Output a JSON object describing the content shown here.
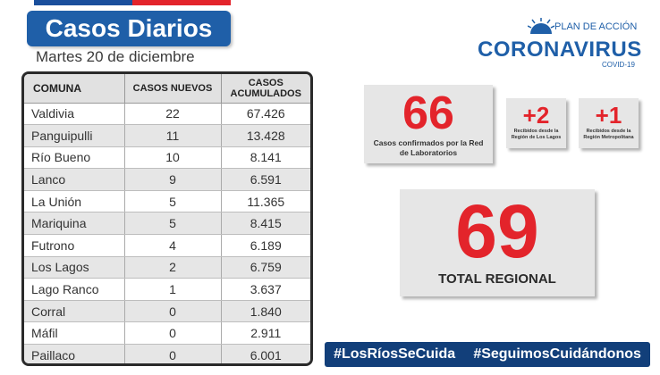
{
  "header": {
    "title": "Casos Diarios",
    "date": "Martes 20 de diciembre"
  },
  "logo": {
    "plan_label": "PLAN DE ACCIÓN",
    "name": "CORONAVIRUS",
    "sub": "COVID-19"
  },
  "table": {
    "headers": [
      "COMUNA",
      "CASOS NUEVOS",
      "CASOS ACUMULADOS"
    ],
    "rows": [
      [
        "Valdivia",
        "22",
        "67.426"
      ],
      [
        "Panguipulli",
        "11",
        "13.428"
      ],
      [
        "Río Bueno",
        "10",
        "8.141"
      ],
      [
        "Lanco",
        "9",
        "6.591"
      ],
      [
        "La Unión",
        "5",
        "11.365"
      ],
      [
        "Mariquina",
        "5",
        "8.415"
      ],
      [
        "Futrono",
        "4",
        "6.189"
      ],
      [
        "Los Lagos",
        "2",
        "6.759"
      ],
      [
        "Lago Ranco",
        "1",
        "3.637"
      ],
      [
        "Corral",
        "0",
        "1.840"
      ],
      [
        "Máfil",
        "0",
        "2.911"
      ],
      [
        "Paillaco",
        "0",
        "6.001"
      ]
    ]
  },
  "cards": {
    "lab": {
      "value": "66",
      "caption": "Casos confirmados por la Red de Laboratorios"
    },
    "los_lagos": {
      "value": "+2",
      "caption": "Recibidos desde la Región de Los Lagos"
    },
    "metropolitana": {
      "value": "+1",
      "caption": "Recibidos desde la Región Metropolitana"
    },
    "total": {
      "value": "69",
      "caption": "TOTAL REGIONAL"
    }
  },
  "hashtags": [
    "#LosRíosSeCuida",
    "#SeguimosCuidándonos"
  ],
  "colors": {
    "brand_blue": "#1f5fa8",
    "accent_red": "#e3242b",
    "bar_navy": "#123f7a"
  }
}
